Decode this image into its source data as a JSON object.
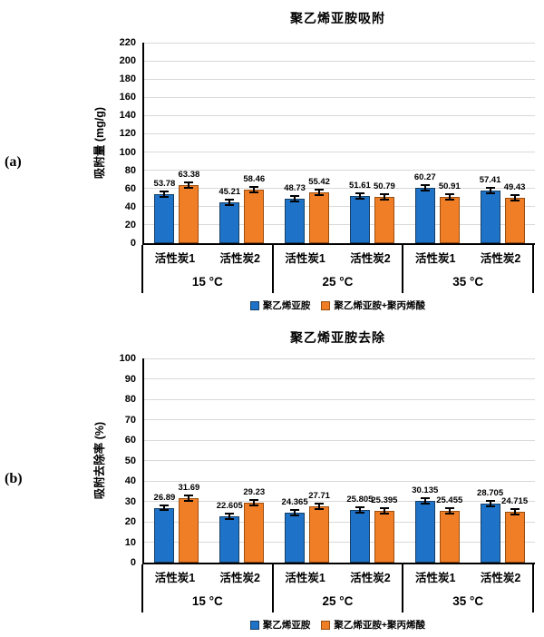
{
  "panel_labels": [
    "(a)",
    "(b)"
  ],
  "chart_data": [
    {
      "type": "bar",
      "title": "聚乙烯亚胺吸附",
      "ylabel": "吸附量 (mg/g)",
      "xlabel": "",
      "ylim": [
        0,
        220
      ],
      "yticks": [
        0,
        20,
        40,
        60,
        80,
        100,
        120,
        140,
        160,
        180,
        200,
        220
      ],
      "grid": true,
      "legend_position": "bottom",
      "group_labels": [
        "15 °C",
        "25 °C",
        "35 °C"
      ],
      "categories": [
        "活性炭1",
        "活性炭2",
        "活性炭1",
        "活性炭2",
        "活性炭1",
        "活性炭2"
      ],
      "error_bar": 3,
      "series": [
        {
          "name": "聚乙烯亚胺",
          "color": "#1e73c8",
          "edge": "#163e63",
          "values": [
            53.78,
            45.21,
            48.73,
            51.61,
            60.27,
            57.41
          ]
        },
        {
          "name": "聚乙烯亚胺+聚丙烯酸",
          "color": "#f07e26",
          "edge": "#9a4d0f",
          "values": [
            63.38,
            58.46,
            55.42,
            50.79,
            50.91,
            49.43
          ]
        }
      ]
    },
    {
      "type": "bar",
      "title": "聚乙烯亚胺去除",
      "ylabel": "吸附去除率 (%)",
      "xlabel": "",
      "ylim": [
        0,
        100
      ],
      "yticks": [
        0,
        10,
        20,
        30,
        40,
        50,
        60,
        70,
        80,
        90,
        100
      ],
      "grid": true,
      "legend_position": "bottom",
      "group_labels": [
        "15 °C",
        "25 °C",
        "35 °C"
      ],
      "categories": [
        "活性炭1",
        "活性炭2",
        "活性炭1",
        "活性炭2",
        "活性炭1",
        "活性炭2"
      ],
      "error_bar": 1.3,
      "series": [
        {
          "name": "聚乙烯亚胺",
          "color": "#1e73c8",
          "edge": "#163e63",
          "values": [
            26.89,
            22.605,
            24.365,
            25.805,
            30.135,
            28.705
          ]
        },
        {
          "name": "聚乙烯亚胺+聚丙烯酸",
          "color": "#f07e26",
          "edge": "#9a4d0f",
          "values": [
            31.69,
            29.23,
            27.71,
            25.395,
            25.455,
            24.715
          ]
        }
      ]
    }
  ]
}
